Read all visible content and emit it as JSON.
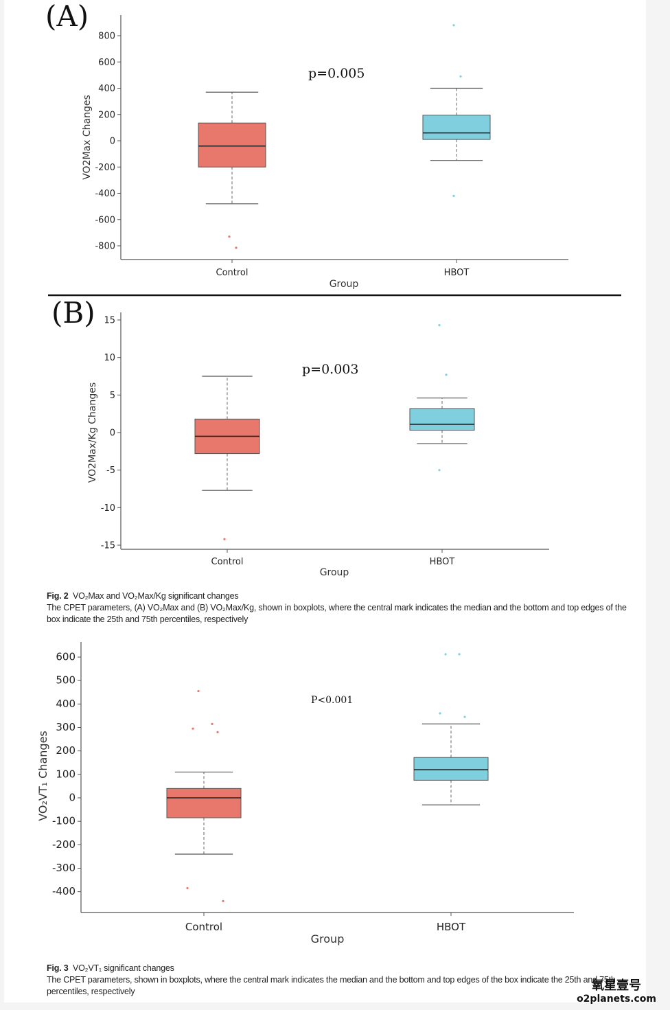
{
  "chart_data": [
    {
      "panel": "(A)",
      "type": "box",
      "annotation": "p=0.005",
      "xlabel": "Group",
      "ylabel": "VO2Max Changes",
      "categories": [
        "Control",
        "HBOT"
      ],
      "yticks": [
        "800",
        "600",
        "400",
        "200",
        "0",
        "-200",
        "-400",
        "-600",
        "-800"
      ],
      "ylim": [
        -900,
        950
      ],
      "series": [
        {
          "name": "Control",
          "color": "#e8786b",
          "whisker_low": -480,
          "q1": -200,
          "median": -40,
          "q3": 135,
          "whisker_high": 370,
          "outliers": [
            -730,
            -815
          ]
        },
        {
          "name": "HBOT",
          "color": "#7fcfdf",
          "whisker_low": -150,
          "q1": 10,
          "median": 60,
          "q3": 195,
          "whisker_high": 400,
          "outliers": [
            880,
            490,
            -420
          ]
        }
      ]
    },
    {
      "panel": "(B)",
      "type": "box",
      "annotation": "p=0.003",
      "xlabel": "Group",
      "ylabel": "VO2Max/Kg Changes",
      "categories": [
        "Control",
        "HBOT"
      ],
      "yticks": [
        "15",
        "10",
        "5",
        "0",
        "-5",
        "-10",
        "-15"
      ],
      "ylim": [
        -15.5,
        16.5
      ],
      "series": [
        {
          "name": "Control",
          "color": "#e8786b",
          "whisker_low": -7.7,
          "q1": -2.8,
          "median": -0.5,
          "q3": 1.8,
          "whisker_high": 7.5,
          "outliers": [
            -14.2
          ]
        },
        {
          "name": "HBOT",
          "color": "#7fcfdf",
          "whisker_low": -1.5,
          "q1": 0.3,
          "median": 1.1,
          "q3": 3.2,
          "whisker_high": 4.6,
          "outliers": [
            14.3,
            7.7,
            -5
          ]
        }
      ]
    },
    {
      "panel": "",
      "type": "box",
      "annotation": "P<0.001",
      "xlabel": "Group",
      "ylabel": "VO₂VT₁  Changes",
      "categories": [
        "Control",
        "HBOT"
      ],
      "yticks": [
        "600",
        "500",
        "400",
        "300",
        "200",
        "100",
        "0",
        "-100",
        "-200",
        "-300",
        "-400"
      ],
      "ylim": [
        -490,
        660
      ],
      "series": [
        {
          "name": "Control",
          "color": "#e8786b",
          "whisker_low": -240,
          "q1": -85,
          "median": 0,
          "q3": 40,
          "whisker_high": 110,
          "outliers": [
            455,
            315,
            295,
            280,
            -385,
            -440
          ]
        },
        {
          "name": "HBOT",
          "color": "#7fcfdf",
          "whisker_low": -30,
          "q1": 75,
          "median": 120,
          "q3": 172,
          "whisker_high": 315,
          "outliers": [
            612,
            612,
            360,
            345
          ]
        }
      ]
    }
  ],
  "captions": {
    "fig2": {
      "label": "Fig. 2",
      "title": "VO₂Max and VO₂Max/Kg significant changes",
      "body": "The CPET parameters, (A) VO₂Max and (B) VO₂Max/Kg, shown in boxplots, where the central mark indicates the median and the bottom and top edges of the box indicate the 25th and 75th percentiles, respectively"
    },
    "fig3": {
      "label": "Fig. 3",
      "title": "VO₂VT₁ significant changes",
      "body": "The CPET parameters, shown in boxplots, where the central mark indicates the median and the bottom and top edges of the box indicate the 25th and 75th percentiles, respectively"
    }
  },
  "watermark": {
    "line1": "氧星壹号",
    "line2": "o2planets.com"
  }
}
